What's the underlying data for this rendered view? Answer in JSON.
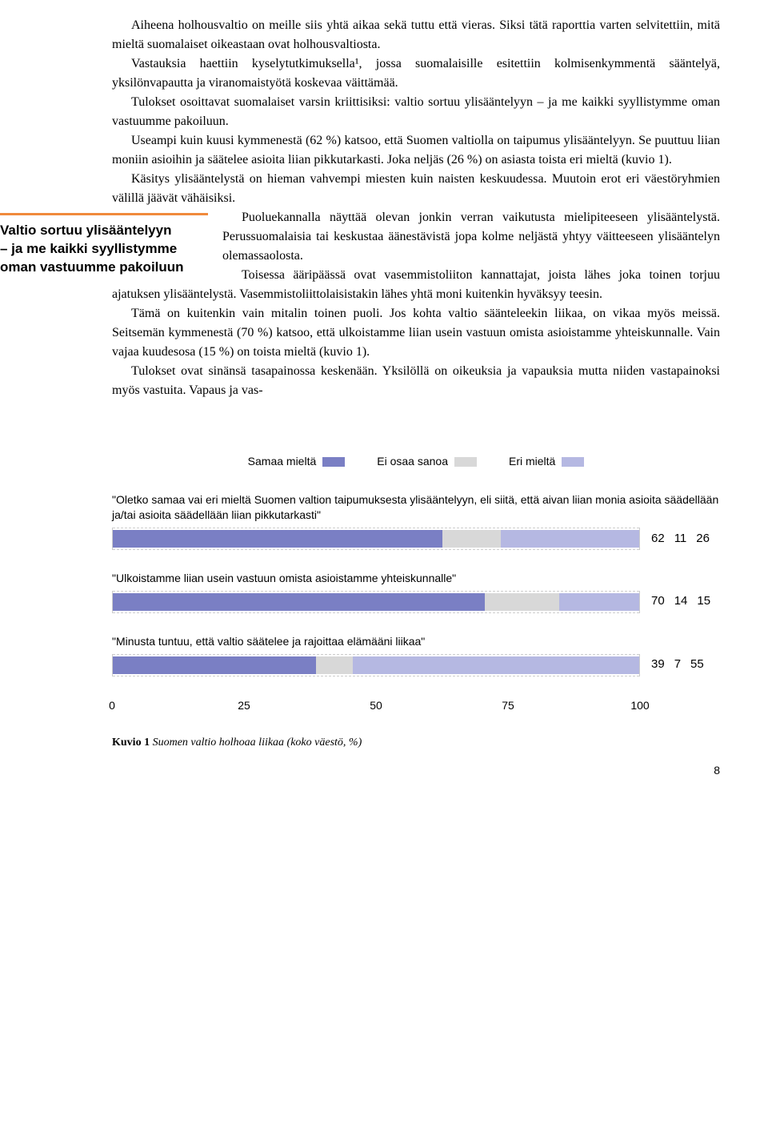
{
  "body": {
    "p1": "Aiheena holhousvaltio on meille siis yhtä aikaa sekä tuttu että vieras. Siksi tätä raporttia varten selvitettiin, mitä mieltä suomalaiset oikeastaan ovat holhousvaltiosta.",
    "p2": "Vastauksia haettiin kyselytutkimuksella¹, jossa suomalaisille esitettiin kolmisenkymmentä sääntelyä, yksilönvapautta ja viranomaistyötä koskevaa väittämää.",
    "p3": "Tulokset osoittavat suomalaiset varsin kriittisiksi: valtio sortuu ylisääntelyyn – ja me kaikki syyllistymme oman vastuumme pakoiluun.",
    "p4": "Useampi kuin kuusi kymmenestä (62 %) katsoo, että Suomen valtiolla on taipumus ylisääntelyyn. Se puuttuu liian moniin asioihin ja säätelee asioita liian pikkutarkasti. Joka neljäs (26 %) on asiasta toista eri mieltä (kuvio 1).",
    "p5": "Käsitys ylisääntelystä on hieman vahvempi miesten kuin naisten keskuudessa. Muutoin erot eri väestöryhmien välillä jäävät vähäisiksi.",
    "p6": "Puoluekannalla näyttää olevan jonkin verran vaikutusta mielipiteeseen ylisääntelystä. Perussuomalaisia tai keskustaa äänestävistä jopa kolme neljästä yhtyy väitteeseen ylisääntelyn olemassaolosta.",
    "p7": "Toisessa ääripäässä ovat vasemmistoliiton kannattajat, joista lähes joka toinen torjuu ajatuksen ylisääntelystä. Vasemmistoliittolaisistakin lähes yhtä moni kuitenkin hyväksyy teesin.",
    "p8": "Tämä on kuitenkin vain mitalin toinen puoli. Jos kohta valtio säänteleekin liikaa, on vikaa myös meissä. Seitsemän kymmenestä (70 %) katsoo, että ulkoistamme liian usein vastuun omista asioistamme yhteiskunnalle. Vain vajaa kuudesosa (15 %) on toista mieltä (kuvio 1).",
    "p9": "Tulokset ovat sinänsä tasapainossa keskenään. Yksilöllä on oikeuksia ja vapauksia mutta niiden vastapainoksi myös vastuita. Vapaus ja vas-"
  },
  "pullquote": {
    "l1": "Valtio sortuu ylisääntelyyn",
    "l2": "– ja me kaikki syyllistymme",
    "l3": "oman vastuumme pakoiluun"
  },
  "chart": {
    "legend": {
      "a": "Samaa mieltä",
      "b": "Ei osaa sanoa",
      "c": "Eri mieltä"
    },
    "colors": {
      "agree": "#7a7fc4",
      "dontknow": "#d8d8d8",
      "disagree": "#b5b8e2"
    },
    "q1": {
      "text": "\"Oletko samaa vai eri mieltä Suomen valtion taipumuksesta ylisääntelyyn, eli siitä, että aivan liian monia asioita säädellään ja/tai asioita säädellään liian pikkutarkasti\"",
      "values": {
        "a": 62,
        "b": 11,
        "c": 26
      }
    },
    "q2": {
      "text": "\"Ulkoistamme liian usein vastuun omista asioistamme yhteiskunnalle\"",
      "values": {
        "a": 70,
        "b": 14,
        "c": 15
      }
    },
    "q3": {
      "text": "\"Minusta tuntuu, että valtio säätelee ja rajoittaa elämääni liikaa\"",
      "values": {
        "a": 39,
        "b": 7,
        "c": 55
      }
    },
    "axis": {
      "t0": "0",
      "t25": "25",
      "t50": "50",
      "t75": "75",
      "t100": "100"
    },
    "caption_bold": "Kuvio 1",
    "caption_ital": "Suomen valtio holhoaa liikaa (koko väestö, %)"
  },
  "page_number": "8"
}
